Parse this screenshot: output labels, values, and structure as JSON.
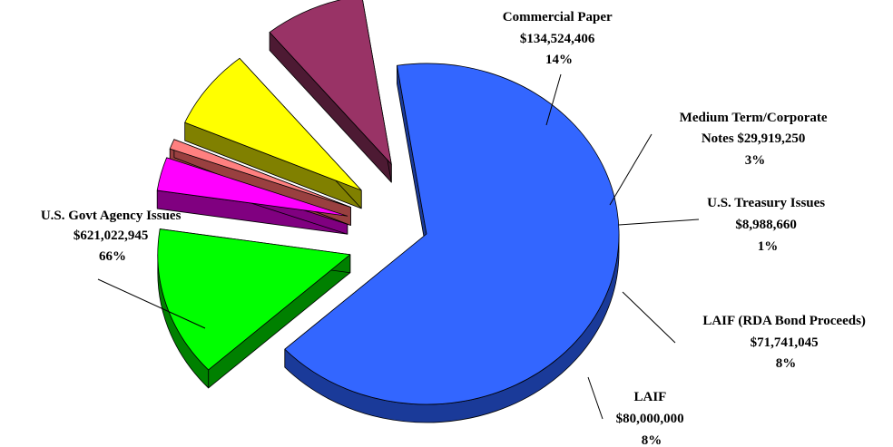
{
  "chart_data": {
    "type": "pie",
    "title": "",
    "slices": [
      {
        "name": "U.S. Govt Agency Issues",
        "value": 621022945,
        "value_label": "$621,022,945",
        "percent_label": "66%",
        "color": "#3366ff",
        "side_color": "#1a3a99"
      },
      {
        "name": "Commercial Paper",
        "value": 134524406,
        "value_label": "$134,524,406",
        "percent_label": "14%",
        "color": "#00ff00",
        "side_color": "#008000"
      },
      {
        "name": "Medium Term/Corporate Notes",
        "value": 29919250,
        "value_label": "$29,919,250",
        "percent_label": "3%",
        "color": "#ff00ff",
        "side_color": "#800080"
      },
      {
        "name": "U.S. Treasury Issues",
        "value": 8988660,
        "value_label": "$8,988,660",
        "percent_label": "1%",
        "color": "#ff8080",
        "side_color": "#994040"
      },
      {
        "name": "LAIF (RDA Bond Proceeds)",
        "value": 71741045,
        "value_label": "$71,741,045",
        "percent_label": "8%",
        "color": "#ffff00",
        "side_color": "#808000"
      },
      {
        "name": "LAIF",
        "value": 80000000,
        "value_label": "$80,000,000",
        "percent_label": "8%",
        "color": "#993366",
        "side_color": "#4d1a33"
      }
    ]
  },
  "labels": {
    "govt": {
      "l1": "U.S. Govt Agency Issues",
      "l2": "$621,022,945",
      "l3": "66%"
    },
    "cp": {
      "l1": "Commercial  Paper",
      "l2": "$134,524,406",
      "l3": "14%"
    },
    "mtn": {
      "l1": "Medium Term/Corporate",
      "l2": "Notes $29,919,250",
      "l3": "3%"
    },
    "treasury": {
      "l1": "U.S. Treasury Issues",
      "l2": "$8,988,660",
      "l3": "1%"
    },
    "laif_rda": {
      "l1": "LAIF (RDA Bond Proceeds)",
      "l2": "$71,741,045",
      "l3": "8%"
    },
    "laif": {
      "l1": "LAIF",
      "l2": "$80,000,000",
      "l3": "8%"
    }
  }
}
